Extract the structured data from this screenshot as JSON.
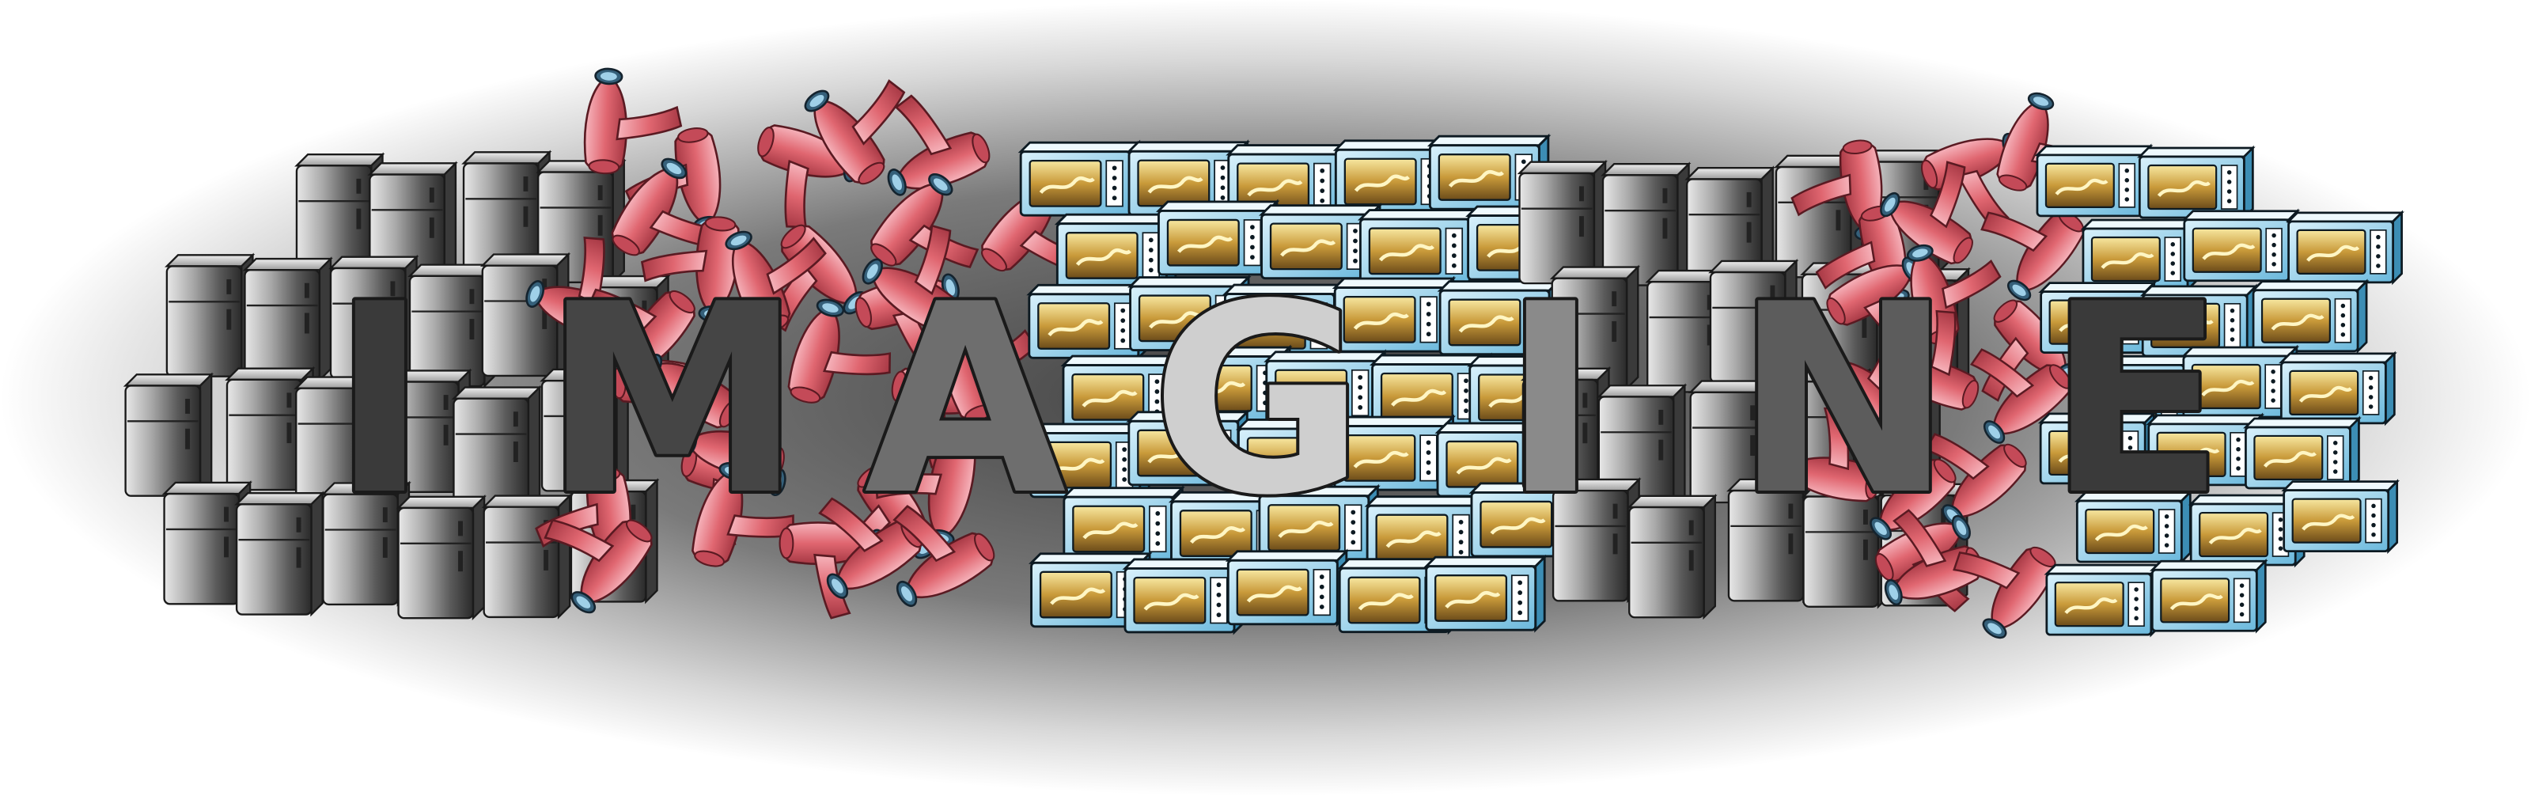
{
  "artwork": {
    "word": "IMAGINE",
    "letter_colors": [
      "#3a3a3a",
      "#454545",
      "#6e6e6e",
      "#cfcfcf",
      "#8a8a8a",
      "#5c5c5c",
      "#3a3a3a"
    ],
    "background_gradient": {
      "center": "#3f3f3f",
      "edge": "#ffffff"
    },
    "clusters": [
      {
        "name": "refrigerators-left",
        "icon": "refrigerator-icon",
        "color": "#9a9a9a"
      },
      {
        "name": "hair-dryers-left",
        "icon": "hair-dryer-icon",
        "color": "#e06670"
      },
      {
        "name": "microwaves-center",
        "icon": "microwave-icon",
        "color": "#7cc8e8"
      },
      {
        "name": "refrigerators-right",
        "icon": "refrigerator-icon",
        "color": "#9a9a9a"
      },
      {
        "name": "hair-dryers-right",
        "icon": "hair-dryer-icon",
        "color": "#e06670"
      },
      {
        "name": "microwaves-right",
        "icon": "microwave-icon",
        "color": "#7cc8e8"
      }
    ]
  }
}
